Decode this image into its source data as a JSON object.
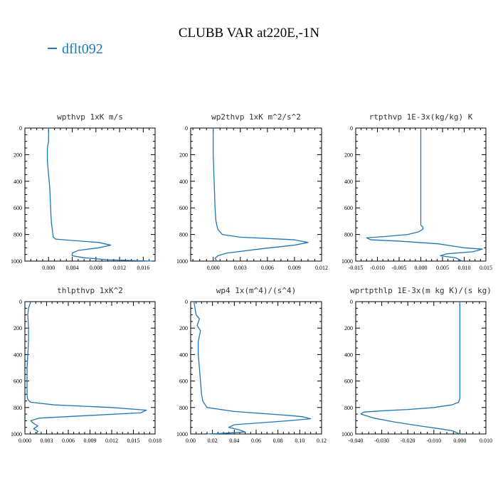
{
  "title": "CLUBB VAR at220E,-1N",
  "legend": [
    {
      "label": "dflt092",
      "color": "#1f77b4"
    }
  ],
  "chart_data": [
    {
      "type": "line",
      "title": "wpthvp  1xK m/s",
      "xlim": [
        -0.004,
        0.018
      ],
      "ylim": [
        1000,
        0
      ],
      "xticks": [
        "0.000",
        "0.004",
        "0.008",
        "0.012",
        "0.016"
      ],
      "xtick_values": [
        0,
        0.004,
        0.008,
        0.012,
        0.016
      ],
      "yticks": [
        "0",
        "200",
        "400",
        "600",
        "800",
        "1000"
      ],
      "ytick_values": [
        0,
        200,
        400,
        600,
        800,
        1000
      ],
      "series": [
        {
          "color": "#1f77b4",
          "x": [
            0.0,
            0.0,
            -0.0002,
            -0.0002,
            0.0,
            0.0002,
            0.0003,
            0.0004,
            0.0005,
            0.0006,
            0.0007,
            0.0008,
            0.0012,
            0.004,
            0.0085,
            0.0105,
            0.0085,
            0.005,
            0.004,
            0.004,
            0.006,
            0.01,
            0.0175
          ],
          "y": [
            0,
            100,
            150,
            250,
            350,
            450,
            550,
            650,
            720,
            750,
            790,
            820,
            835,
            845,
            860,
            880,
            900,
            920,
            940,
            960,
            975,
            990,
            1000
          ]
        }
      ]
    },
    {
      "type": "line",
      "title": "wp2thvp  1xK m^2/s^2",
      "xlim": [
        -0.0025,
        0.012
      ],
      "ylim": [
        1000,
        0
      ],
      "xticks": [
        "0.000",
        "0.003",
        "0.006",
        "0.009",
        "0.012"
      ],
      "xtick_values": [
        0,
        0.003,
        0.006,
        0.009,
        0.012
      ],
      "yticks": [
        "0",
        "200",
        "400",
        "600",
        "800",
        "1000"
      ],
      "ytick_values": [
        0,
        200,
        400,
        600,
        800,
        1000
      ],
      "series": [
        {
          "color": "#1f77b4",
          "x": [
            0.0,
            0.0,
            5e-05,
            0.0001,
            0.00015,
            0.0002,
            0.0003,
            0.0005,
            0.001,
            0.003,
            0.006,
            0.009,
            0.0105,
            0.009,
            0.005,
            0.0015,
            0.0005,
            0.0002,
            0.0004
          ],
          "y": [
            0,
            200,
            300,
            400,
            500,
            600,
            700,
            760,
            800,
            820,
            830,
            840,
            860,
            880,
            910,
            940,
            960,
            980,
            1000
          ]
        }
      ]
    },
    {
      "type": "line",
      "title": "rtpthvp  1E-3x(kg/kg) K",
      "xlim": [
        -0.015,
        0.015
      ],
      "ylim": [
        1000,
        0
      ],
      "xticks": [
        "-0.015",
        "-0.010",
        "-0.005",
        "0.000",
        "0.005",
        "0.010",
        "0.015"
      ],
      "xtick_values": [
        -0.015,
        -0.01,
        -0.005,
        0,
        0.005,
        0.01,
        0.015
      ],
      "yticks": [
        "0",
        "200",
        "400",
        "600",
        "800",
        "1000"
      ],
      "ytick_values": [
        0,
        200,
        400,
        600,
        800,
        1000
      ],
      "series": [
        {
          "color": "#1f77b4",
          "x": [
            0.0,
            0.0,
            0.0,
            0.0,
            0.0,
            0.0,
            0.0005,
            0.0005,
            -0.0005,
            -0.003,
            -0.008,
            -0.0125,
            -0.0115,
            -0.005,
            0.004,
            0.01,
            0.0142,
            0.012,
            0.006,
            0.0045,
            0.008,
            0.0095
          ],
          "y": [
            0,
            200,
            400,
            600,
            700,
            730,
            745,
            760,
            780,
            800,
            815,
            825,
            840,
            850,
            870,
            900,
            910,
            930,
            945,
            960,
            975,
            1000
          ]
        }
      ]
    },
    {
      "type": "line",
      "title": "thlpthvp  1xK^2",
      "xlim": [
        0,
        0.018
      ],
      "ylim": [
        1000,
        0
      ],
      "xticks": [
        "0.000",
        "0.003",
        "0.006",
        "0.009",
        "0.012",
        "0.015",
        "0.018"
      ],
      "xtick_values": [
        0,
        0.003,
        0.006,
        0.009,
        0.012,
        0.015,
        0.018
      ],
      "yticks": [
        "0",
        "200",
        "400",
        "600",
        "800",
        "1000"
      ],
      "ytick_values": [
        0,
        200,
        400,
        600,
        800,
        1000
      ],
      "series": [
        {
          "color": "#1f77b4",
          "x": [
            0.0008,
            0.0005,
            0.0004,
            0.0005,
            0.0005,
            0.0004,
            0.0003,
            0.0003,
            0.0003,
            0.0003,
            0.0004,
            0.0008,
            0.004,
            0.012,
            0.0168,
            0.016,
            0.009,
            0.002,
            0.0008,
            0.0012,
            0.0018,
            0.0012,
            0.0018,
            0.0015
          ],
          "y": [
            0,
            50,
            100,
            200,
            300,
            400,
            500,
            600,
            680,
            710,
            740,
            760,
            780,
            800,
            820,
            840,
            860,
            880,
            900,
            920,
            940,
            960,
            980,
            1000
          ]
        }
      ]
    },
    {
      "type": "line",
      "title": "wp4  1x(m^4)/(s^4)",
      "xlim": [
        0,
        0.12
      ],
      "ylim": [
        1000,
        0
      ],
      "xticks": [
        "0.00",
        "0.02",
        "0.04",
        "0.06",
        "0.08",
        "0.10",
        "0.12"
      ],
      "xtick_values": [
        0,
        0.02,
        0.04,
        0.06,
        0.08,
        0.1,
        0.12
      ],
      "yticks": [
        "0",
        "200",
        "400",
        "600",
        "800",
        "1000"
      ],
      "ytick_values": [
        0,
        200,
        400,
        600,
        800,
        1000
      ],
      "series": [
        {
          "color": "#1f77b4",
          "x": [
            0.003,
            0.005,
            0.008,
            0.006,
            0.009,
            0.007,
            0.007,
            0.008,
            0.009,
            0.01,
            0.011,
            0.015,
            0.04,
            0.09,
            0.103,
            0.11,
            0.09,
            0.04,
            0.035,
            0.045,
            0.05,
            0.03,
            0.015
          ],
          "y": [
            0,
            100,
            130,
            180,
            220,
            300,
            400,
            500,
            600,
            700,
            750,
            800,
            830,
            860,
            870,
            885,
            900,
            930,
            950,
            970,
            985,
            995,
            1000
          ]
        }
      ]
    },
    {
      "type": "line",
      "title": "wprtpthlp  1E-3x(m kg K)/(s kg)",
      "xlim": [
        -0.04,
        0.01
      ],
      "ylim": [
        1000,
        0
      ],
      "xticks": [
        "-0.040",
        "-0.030",
        "-0.020",
        "-0.010",
        "0.000",
        "0.010"
      ],
      "xtick_values": [
        -0.04,
        -0.03,
        -0.02,
        -0.01,
        0,
        0.01
      ],
      "yticks": [
        "0",
        "200",
        "400",
        "600",
        "800",
        "1000"
      ],
      "ytick_values": [
        0,
        200,
        400,
        600,
        800,
        1000
      ],
      "series": [
        {
          "color": "#1f77b4",
          "x": [
            0.0,
            0.0,
            0.0,
            0.0,
            0.0,
            0.0,
            -0.0005,
            -0.003,
            -0.01,
            -0.02,
            -0.03,
            -0.037,
            -0.038,
            -0.033,
            -0.025,
            -0.015,
            -0.008,
            -0.003,
            0.0
          ],
          "y": [
            0,
            200,
            400,
            600,
            700,
            730,
            760,
            780,
            800,
            815,
            825,
            835,
            850,
            880,
            910,
            940,
            960,
            975,
            1000
          ]
        }
      ]
    }
  ]
}
